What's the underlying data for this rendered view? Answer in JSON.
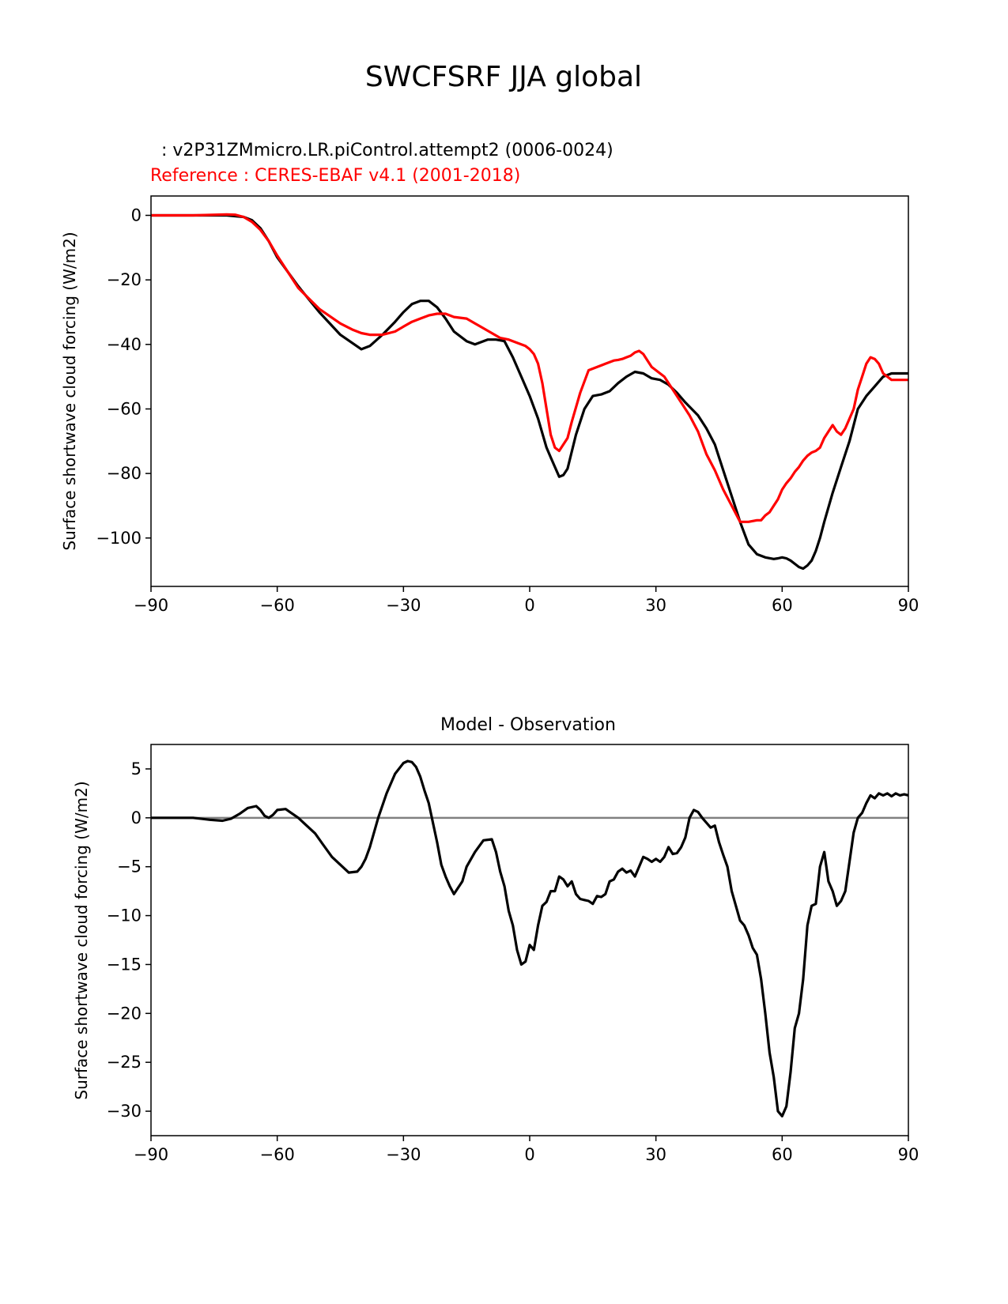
{
  "figure_title": "SWCFSRF JJA global",
  "chart_data": [
    {
      "type": "line",
      "title": "",
      "test_label": "  : v2P31ZMmicro.LR.piControl.attempt2 (0006-0024)",
      "ref_label": "Reference : CERES-EBAF v4.1 (2001-2018)",
      "xlabel": "",
      "ylabel": "Surface shortwave cloud forcing (W/m2)",
      "xlim": [
        -90,
        90
      ],
      "ylim": [
        -115,
        6
      ],
      "xticks": [
        -90,
        -60,
        -30,
        0,
        30,
        60,
        90
      ],
      "xtick_labels": [
        "−90",
        "−60",
        "−30",
        "0",
        "30",
        "60",
        "90"
      ],
      "yticks": [
        0,
        -20,
        -40,
        -60,
        -80,
        -100
      ],
      "ytick_labels": [
        "0",
        "−20",
        "−40",
        "−60",
        "−80",
        "−100"
      ],
      "grid": false,
      "series": [
        {
          "color": "#000000",
          "x": [
            -90,
            -80,
            -72,
            -68,
            -66,
            -64,
            -62,
            -60,
            -55,
            -50,
            -45,
            -40,
            -38,
            -35,
            -32,
            -30,
            -28,
            -26,
            -24,
            -22,
            -20,
            -18,
            -15,
            -13,
            -10,
            -8,
            -6,
            -4,
            -2,
            0,
            2,
            4,
            5,
            6,
            7,
            8,
            9,
            11,
            13,
            15,
            17,
            19,
            21,
            23,
            25,
            27,
            29,
            31,
            33,
            35,
            37,
            40,
            42,
            44,
            46,
            48,
            50,
            52,
            54,
            56,
            58,
            59,
            60,
            61,
            62,
            63,
            64,
            65,
            66,
            67,
            68,
            69,
            70,
            72,
            74,
            76,
            78,
            80,
            82,
            84,
            86,
            90
          ],
          "values": [
            0,
            0,
            0,
            -0.5,
            -1.5,
            -4,
            -8,
            -13,
            -22,
            -30,
            -37,
            -41.5,
            -40.5,
            -37,
            -33,
            -30,
            -27.5,
            -26.5,
            -26.5,
            -28.5,
            -32,
            -36,
            -39,
            -40,
            -38.5,
            -38.5,
            -39,
            -44,
            -50,
            -56,
            -63,
            -72,
            -75,
            -78,
            -81,
            -80.5,
            -78.5,
            -68,
            -60,
            -56,
            -55.5,
            -54.5,
            -52,
            -50,
            -48.5,
            -49,
            -50.5,
            -51,
            -52.5,
            -55,
            -58,
            -62,
            -66,
            -71,
            -79,
            -87,
            -95,
            -102,
            -105,
            -106,
            -106.5,
            -106.3,
            -106,
            -106.3,
            -107,
            -108,
            -109,
            -109.5,
            -108.5,
            -107,
            -104,
            -100,
            -95,
            -86,
            -78,
            -70,
            -60,
            -56,
            -53,
            -50,
            -49,
            -49
          ]
        },
        {
          "color": "#ff0000",
          "x": [
            -90,
            -80,
            -72,
            -70,
            -68,
            -66,
            -64,
            -62,
            -60,
            -55,
            -50,
            -45,
            -42,
            -40,
            -38,
            -35,
            -32,
            -30,
            -28,
            -26,
            -24,
            -22,
            -20,
            -18,
            -15,
            -13,
            -11,
            -9,
            -7,
            -5,
            -3,
            -1,
            0,
            1,
            2,
            3,
            4,
            5,
            6,
            7,
            8,
            9,
            10,
            12,
            14,
            16,
            18,
            19,
            20,
            21,
            22,
            23,
            24,
            25,
            26,
            27,
            28,
            29,
            30,
            32,
            34,
            36,
            38,
            40,
            42,
            44,
            46,
            48,
            50,
            52,
            54,
            55,
            56,
            57,
            58,
            59,
            60,
            61,
            62,
            63,
            64,
            65,
            66,
            67,
            68,
            69,
            70,
            71,
            72,
            73,
            74,
            75,
            76,
            77,
            78,
            79,
            80,
            81,
            82,
            83,
            84,
            85,
            86,
            87,
            88,
            90
          ],
          "values": [
            0,
            0,
            0.3,
            0.2,
            -0.5,
            -2,
            -4.5,
            -8,
            -12.5,
            -22.5,
            -29,
            -33.5,
            -35.5,
            -36.5,
            -37,
            -37,
            -36,
            -34.5,
            -33,
            -32,
            -31,
            -30.5,
            -30.5,
            -31.5,
            -32,
            -33.5,
            -35,
            -36.5,
            -38,
            -38.5,
            -39.5,
            -40.5,
            -41.5,
            -43,
            -46,
            -52,
            -60,
            -68,
            -72,
            -73,
            -71,
            -69,
            -64,
            -55,
            -48,
            -47,
            -46,
            -45.5,
            -45,
            -44.8,
            -44.5,
            -44,
            -43.5,
            -42.5,
            -42,
            -43,
            -45,
            -47,
            -48,
            -50,
            -54,
            -58,
            -62,
            -67,
            -74,
            -79,
            -85,
            -90,
            -95,
            -95,
            -94.5,
            -94.5,
            -93,
            -92,
            -90,
            -88,
            -85,
            -83,
            -81.5,
            -79.5,
            -78,
            -76,
            -74.5,
            -73.5,
            -73,
            -72,
            -69,
            -67,
            -65,
            -67,
            -68,
            -66,
            -63,
            -60,
            -54,
            -50,
            -46,
            -44,
            -44.5,
            -46,
            -49,
            -50,
            -51,
            -51,
            -51,
            -51
          ]
        }
      ]
    },
    {
      "type": "line",
      "title": "Model - Observation",
      "xlabel": "",
      "ylabel": "Surface shortwave cloud forcing (W/m2)",
      "xlim": [
        -90,
        90
      ],
      "ylim": [
        -32.5,
        7.5
      ],
      "xticks": [
        -90,
        -60,
        -30,
        0,
        30,
        60,
        90
      ],
      "xtick_labels": [
        "−90",
        "−60",
        "−30",
        "0",
        "30",
        "60",
        "90"
      ],
      "yticks": [
        5,
        0,
        -5,
        -10,
        -15,
        -20,
        -25,
        -30
      ],
      "ytick_labels": [
        "5",
        "0",
        "−5",
        "−10",
        "−15",
        "−20",
        "−25",
        "−30"
      ],
      "grid": false,
      "zero_line_color": "#808080",
      "series": [
        {
          "color": "#000000",
          "x": [
            -90,
            -80,
            -76,
            -73,
            -71,
            -69,
            -67,
            -65,
            -64,
            -63,
            -62,
            -61,
            -60,
            -58,
            -57,
            -55,
            -53,
            -51,
            -49,
            -47,
            -45,
            -43,
            -41,
            -40,
            -39,
            -38,
            -36,
            -34,
            -32,
            -30,
            -29,
            -28,
            -27,
            -26,
            -25,
            -24,
            -22,
            -21,
            -20,
            -19,
            -18,
            -16,
            -15,
            -13,
            -11,
            -9,
            -8,
            -7,
            -6,
            -5,
            -4,
            -3,
            -2,
            -1,
            0,
            1,
            2,
            3,
            4,
            5,
            6,
            7,
            8,
            9,
            10,
            11,
            12,
            13,
            14,
            15,
            16,
            17,
            18,
            19,
            20,
            21,
            22,
            23,
            24,
            25,
            26,
            27,
            28,
            29,
            30,
            31,
            32,
            33,
            34,
            35,
            36,
            37,
            38,
            39,
            40,
            41,
            42,
            43,
            44,
            45,
            46,
            47,
            48,
            49,
            50,
            51,
            52,
            53,
            54,
            55,
            56,
            57,
            58,
            59,
            60,
            61,
            62,
            63,
            64,
            65,
            66,
            67,
            68,
            69,
            70,
            71,
            72,
            73,
            74,
            75,
            76,
            77,
            78,
            79,
            80,
            81,
            82,
            83,
            84,
            85,
            86,
            87,
            88,
            89,
            90
          ],
          "values": [
            0,
            0,
            -0.2,
            -0.3,
            -0.1,
            0.4,
            1.0,
            1.2,
            0.8,
            0.2,
            0,
            0.3,
            0.8,
            0.9,
            0.6,
            0,
            -0.8,
            -1.6,
            -2.8,
            -4.0,
            -4.8,
            -5.6,
            -5.5,
            -5.0,
            -4.2,
            -3.0,
            0,
            2.5,
            4.5,
            5.6,
            5.8,
            5.7,
            5.2,
            4.2,
            2.8,
            1.5,
            -2.5,
            -4.8,
            -6.0,
            -7.0,
            -7.8,
            -6.5,
            -5.0,
            -3.5,
            -2.3,
            -2.2,
            -3.5,
            -5.5,
            -7.0,
            -9.5,
            -11.0,
            -13.5,
            -15.0,
            -14.7,
            -13.0,
            -13.5,
            -11.0,
            -9.0,
            -8.6,
            -7.5,
            -7.5,
            -6.0,
            -6.3,
            -7.0,
            -6.5,
            -7.8,
            -8.3,
            -8.4,
            -8.5,
            -8.8,
            -8.0,
            -8.1,
            -7.8,
            -6.5,
            -6.3,
            -5.5,
            -5.2,
            -5.6,
            -5.4,
            -6.0,
            -5.0,
            -4.0,
            -4.2,
            -4.5,
            -4.2,
            -4.5,
            -4.0,
            -3.0,
            -3.7,
            -3.6,
            -3.0,
            -2.0,
            0,
            0.8,
            0.6,
            0,
            -0.5,
            -1.0,
            -0.8,
            -2.5,
            -3.8,
            -5.0,
            -7.5,
            -9.0,
            -10.5,
            -11.0,
            -12.0,
            -13.3,
            -14.0,
            -16.5,
            -20.0,
            -24.0,
            -26.5,
            -30.0,
            -30.5,
            -29.5,
            -26.0,
            -21.5,
            -20.0,
            -16.5,
            -11.0,
            -9.0,
            -8.8,
            -5.0,
            -3.5,
            -6.5,
            -7.5,
            -9.0,
            -8.5,
            -7.5,
            -4.5,
            -1.5,
            0,
            0.5,
            1.5,
            2.3,
            2.0,
            2.5,
            2.3,
            2.5,
            2.2,
            2.5,
            2.3,
            2.4,
            2.3
          ]
        }
      ]
    }
  ]
}
